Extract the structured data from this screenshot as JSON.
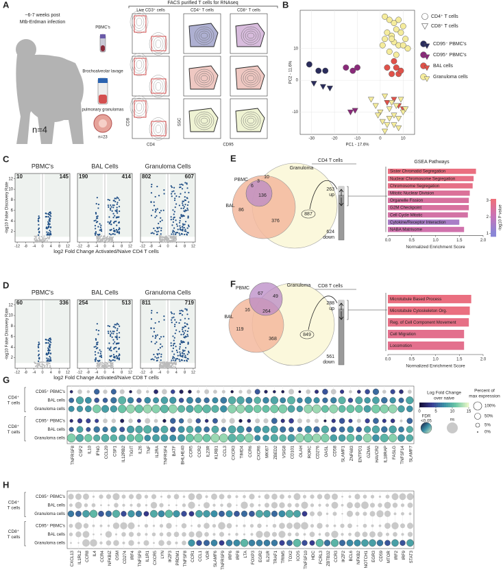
{
  "A": {
    "letter": "A",
    "timing": "~6-7 weeks post",
    "infection": "Mtb-Erdman infection",
    "n": "n=4",
    "samples": [
      "PBMC's",
      "Brochoalveolar lavage",
      "pulmonary granulomas"
    ],
    "granuloma_n": "n=23",
    "facs_title": "FACS purified T cells for RNAseq",
    "gate_titles": [
      "Live CD3⁺ cells",
      "CD4⁺ T cells",
      "CD8⁺ T cells"
    ],
    "axes": [
      "CD8",
      "CD4",
      "SSC",
      "CD95"
    ]
  },
  "B": {
    "letter": "B",
    "xlabel": "PC1 - 17.6%",
    "ylabel": "PC2 - 11.6%",
    "xlim": [
      -35,
      15
    ],
    "ylim": [
      -17,
      22
    ],
    "xticks": [
      -30,
      -20,
      -10,
      0,
      10
    ],
    "yticks": [
      -10,
      0,
      10
    ],
    "shapes": [
      "CD4⁺ T cells",
      "CD8⁺ T cells"
    ],
    "groups": [
      {
        "name": "CD95⁻ PBMC's",
        "color": "#2a2c5c",
        "cd4": {
          "x": [
            -31,
            -27,
            -24
          ],
          "y": [
            5,
            3,
            3
          ]
        },
        "cd8": {
          "x": [
            -29,
            -25,
            -22
          ],
          "y": [
            -1,
            -2,
            -2.5
          ]
        }
      },
      {
        "name": "CD95⁺ PBMC's",
        "color": "#8a2a7a",
        "cd4": {
          "x": [
            -15,
            -12,
            -10
          ],
          "y": [
            4,
            3,
            4
          ]
        },
        "cd8": {
          "x": [
            -13,
            -11
          ],
          "y": [
            -10,
            -9.5
          ]
        }
      },
      {
        "name": "BAL cells",
        "color": "#e0524a",
        "cd4": {
          "x": [
            3,
            5,
            7,
            8,
            6,
            9
          ],
          "y": [
            4,
            2,
            4,
            2,
            6,
            3
          ]
        },
        "cd8": {
          "x": [
            3,
            6,
            8,
            10
          ],
          "y": [
            -7,
            -6,
            -8,
            -9
          ]
        }
      },
      {
        "name": "Granuloma cells",
        "color": "#f5ec9c",
        "cd4": {
          "x": [
            2,
            4,
            6,
            8,
            10,
            3,
            5,
            7,
            9,
            11,
            1,
            6,
            8,
            12,
            4,
            7,
            5,
            10,
            2
          ],
          "y": [
            20,
            19,
            18,
            19,
            17,
            15,
            14,
            16,
            15,
            13,
            11,
            12,
            11,
            10,
            9,
            8,
            13,
            11,
            13
          ]
        },
        "cd8": {
          "x": [
            -4,
            -2,
            0,
            2,
            4,
            6,
            8,
            10,
            1,
            3,
            5,
            7,
            9,
            -1,
            2,
            6,
            4,
            8,
            11
          ],
          "y": [
            -6,
            -8,
            -10,
            -5,
            -9,
            -11,
            -12,
            -10,
            -13,
            -14,
            -7,
            -8,
            -6,
            -11,
            -16,
            -14,
            -12,
            -15,
            -9
          ]
        }
      }
    ]
  },
  "C": {
    "letter": "C",
    "ylabel": "-log10 False Discovery Rate",
    "xlabel": "log2 Fold Change Activated/Naive CD4 T cells",
    "xlim": [
      -13,
      13
    ],
    "ylim": [
      0,
      13
    ],
    "xticks": [
      -12,
      -8,
      -4,
      0,
      4,
      8,
      12
    ],
    "yticks": [
      2,
      4,
      6,
      8,
      10,
      12
    ],
    "plots": [
      {
        "name": "PBMC's",
        "down": 10,
        "up": 145
      },
      {
        "name": "BAL Cells",
        "down": 190,
        "up": 414
      },
      {
        "name": "Granuloma Cells",
        "down": 802,
        "up": 607
      }
    ]
  },
  "D": {
    "letter": "D",
    "ylabel": "-log10 False Discovery Rate",
    "xlabel": "log2 Fold Change Activated/Naive CD8 T cells",
    "xlim": [
      -13,
      13
    ],
    "ylim": [
      0,
      13
    ],
    "xticks": [
      -12,
      -8,
      -4,
      0,
      4,
      8,
      12
    ],
    "yticks": [
      2,
      4,
      6,
      8,
      10,
      12
    ],
    "plots": [
      {
        "name": "PBMC's",
        "down": 60,
        "up": 336
      },
      {
        "name": "BAL Cells",
        "down": 254,
        "up": 513
      },
      {
        "name": "Granuloma Cells",
        "down": 811,
        "up": 719
      }
    ]
  },
  "E": {
    "letter": "E",
    "title": "CD4 T cells",
    "sets": [
      "PBMC",
      "BAL",
      "Granuloma"
    ],
    "regions": [
      6,
      3,
      10,
      136,
      86,
      376,
      887
    ],
    "up": 263,
    "up_label": "up",
    "down": 624,
    "down_label": "down",
    "gsea_title": "GSEA Pathways",
    "xlabel": "Normalized Enrichment Score",
    "xlim": [
      0,
      2
    ],
    "xticks": [
      {
        "value": 0,
        "label": "0.0"
      },
      {
        "value": 0.5,
        "label": "0.5"
      },
      {
        "value": 1,
        "label": "1.0"
      },
      {
        "value": 1.5,
        "label": "1.5"
      },
      {
        "value": 2,
        "label": "2.0"
      }
    ],
    "pathways": [
      "Sister Chromatid Segregation",
      "Nuclear Chromosome Segregation",
      "Chromosome Segregation",
      "Mitotic Nuclear Division",
      "Organelle Fission",
      "G2M Checkpoint",
      "Cell Cycle Mitotic",
      "Cytokine/Receptor Interaction",
      "NABA Matrisome"
    ],
    "values": [
      1.85,
      1.8,
      1.78,
      1.72,
      1.7,
      1.7,
      1.68,
      1.5,
      1.6
    ],
    "neglog10p": [
      2.9,
      2.8,
      2.8,
      2.5,
      2.4,
      2.4,
      2.3,
      1.5,
      2.2
    ],
    "clim": [
      0.8,
      3.1
    ],
    "cticks": [
      1,
      2,
      3
    ],
    "clabel": "-log10 P value"
  },
  "F": {
    "letter": "F",
    "title": "CD8 T cells",
    "sets": [
      "PBMC",
      "BAL",
      "Granuloma"
    ],
    "regions": [
      67,
      49,
      16,
      264,
      119,
      368,
      849
    ],
    "up": 288,
    "up_label": "up",
    "down": 561,
    "down_label": "down",
    "xlabel": "Normalized Enrichment Score",
    "xlim": [
      0,
      2
    ],
    "xticks": [
      {
        "value": 0,
        "label": "0.0"
      },
      {
        "value": 0.5,
        "label": "0.5"
      },
      {
        "value": 1,
        "label": "1.0"
      },
      {
        "value": 1.5,
        "label": "1.5"
      },
      {
        "value": 2,
        "label": "2.0"
      }
    ],
    "pathways": [
      "Microtubule Based Process",
      "Microtubule Cytoskeleton Org.",
      "Reg. of Cell Component Movement",
      "Cell Migration",
      "Locomotion"
    ],
    "values": [
      1.75,
      1.72,
      1.7,
      1.6,
      1.6
    ],
    "neglog10p": [
      2.9,
      2.9,
      2.8,
      2.7,
      2.7
    ]
  },
  "G": {
    "letter": "G",
    "groups": [
      {
        "label": [
          "CD4⁺",
          "T cells"
        ],
        "rows": [
          "CD95⁺ PBMC's",
          "BAL cells",
          "Granuloma cells"
        ]
      },
      {
        "label": [
          "CD8⁺",
          "T cells"
        ],
        "rows": [
          "CD95⁺ PBMC's",
          "BAL cells",
          "Granuloma cells"
        ]
      }
    ],
    "genes": [
      "TNFRSF8",
      "CSF2",
      "IL10",
      "IFNG",
      "CCL20",
      "CSF1",
      "IL12RB2",
      "TIGIT",
      "IL26",
      "TNF",
      "IL2RA",
      "TNFRSF4",
      "BATF",
      "BHLHE40",
      "CCR5",
      "CCR2",
      "IL23R",
      "KLRB1",
      "CCL3",
      "CXCR3",
      "TIMD4",
      "CCR6",
      "CXCR6",
      "MKI67",
      "ZBED2",
      "VSIG8",
      "CD101",
      "OLAH",
      "RORC",
      "CD276",
      "OASL",
      "CD58",
      "SLAMF1",
      "ZNF683",
      "ENTPD1",
      "GZMA",
      "HAVCR2",
      "IL18RAP",
      "FASLG",
      "TNFSF14",
      "SLAMF7"
    ],
    "lfc_title": [
      "Log Fold Change",
      "over naive"
    ],
    "lfc_ticks": [
      0,
      5,
      10,
      15
    ],
    "fdr": [
      "FDR",
      "<0.05"
    ],
    "ns": "ns",
    "pct_title": [
      "Percent of",
      "max expression"
    ],
    "pct_labels": [
      "100%",
      "50%",
      "5%",
      "0%"
    ]
  },
  "H": {
    "letter": "H",
    "groups": [
      {
        "label": [
          "CD4⁺",
          "T cells"
        ],
        "rows": [
          "CD95⁺ PBMC's",
          "BAL cells",
          "Granuloma cells"
        ]
      },
      {
        "label": [
          "CD8⁺",
          "T cells"
        ],
        "rows": [
          "CD95⁺ PBMC's",
          "BAL cells",
          "Granuloma cells"
        ]
      }
    ],
    "genes": [
      "CXCL13",
      "IL1RL2",
      "CCR8",
      "IL4",
      "CCR4",
      "NFKBIZ",
      "OSM",
      "CD274",
      "IRF4",
      "TNFSF9",
      "IL1R1",
      "CXCR5",
      "LYN",
      "IKZF3",
      "PRDM1",
      "TNFSF8",
      "CCR1",
      "CCL1",
      "VDR",
      "SLAMF6",
      "TNFRSF9",
      "IRF6",
      "IRF8",
      "LTA",
      "FOXP3",
      "EGR2",
      "IL21R",
      "TRAF1",
      "TRIM5",
      "TOX2",
      "ICOS",
      "TNFSF10",
      "HDC",
      "FCRL3",
      "ZBTB32",
      "CCR3",
      "IKZF2",
      "BCL6",
      "NFKB2",
      "NOTCH1",
      "EGR3",
      "CD59",
      "MTOR",
      "IRF2",
      "IRF9",
      "STAT3"
    ]
  }
}
